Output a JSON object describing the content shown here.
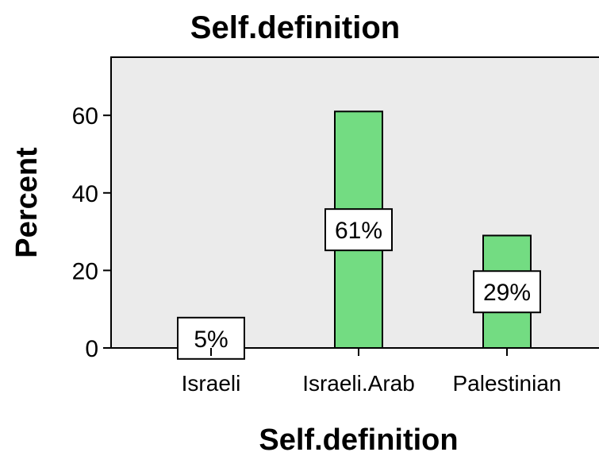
{
  "chart_data": {
    "type": "bar",
    "title": "Self.definition",
    "xlabel": "Self.definition",
    "ylabel": "Percent",
    "categories": [
      "Israeli",
      "Israeli.Arab",
      "Palestinian"
    ],
    "values": [
      5,
      61,
      29
    ],
    "data_labels": [
      "5%",
      "61%",
      "29%"
    ],
    "ylim": [
      0,
      75
    ],
    "yticks": [
      0,
      20,
      40,
      60
    ],
    "colors": {
      "plot_bg": "#ebebeb",
      "bar_fill": "#73dc82",
      "bar_stroke": "#000000",
      "label_bg": "#ffffff"
    },
    "grid": false
  }
}
